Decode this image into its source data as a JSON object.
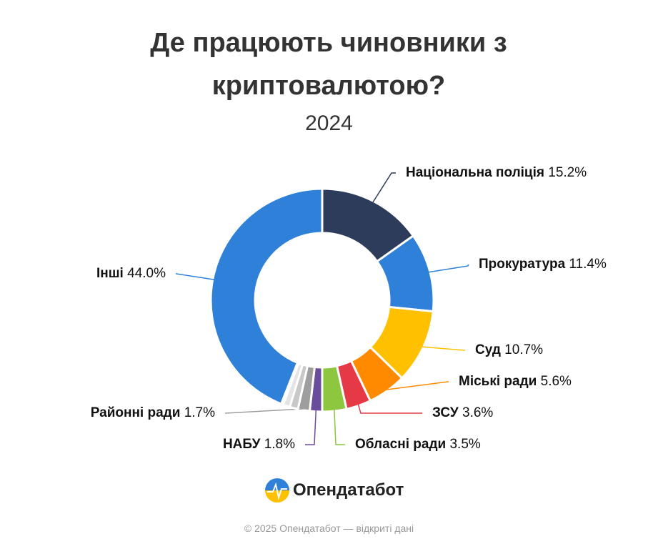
{
  "chart_data": {
    "type": "pie",
    "title": "Де працюють чиновники з криптовалютою?",
    "subtitle": "2024",
    "categories": [
      "Національна поліція",
      "Прокуратура",
      "Суд",
      "Міські ради",
      "ЗСУ",
      "Обласні ради",
      "НАБУ",
      "Районні ради",
      null,
      null,
      null,
      "Інші"
    ],
    "values": [
      15.2,
      11.4,
      10.7,
      5.6,
      3.6,
      3.5,
      1.8,
      1.7,
      1.2,
      1.0,
      0.3,
      44.0
    ],
    "value_labels": [
      "15.2%",
      "11.4%",
      "10.7%",
      "5.6%",
      "3.6%",
      "3.5%",
      "1.8%",
      "1.7%",
      null,
      null,
      null,
      "44.0%"
    ],
    "colors": [
      "#2e3c5c",
      "#2f80d8",
      "#ffc000",
      "#ff8a00",
      "#e63946",
      "#8dc63f",
      "#6a4c9c",
      "#9e9e9e",
      "#c8c8c8",
      "#e4e4e4",
      "#2e3c5c",
      "#2f80d8"
    ],
    "donut": true
  },
  "brand": "Опендатабот",
  "footer": "© 2025 Опендатабот — відкриті дані"
}
